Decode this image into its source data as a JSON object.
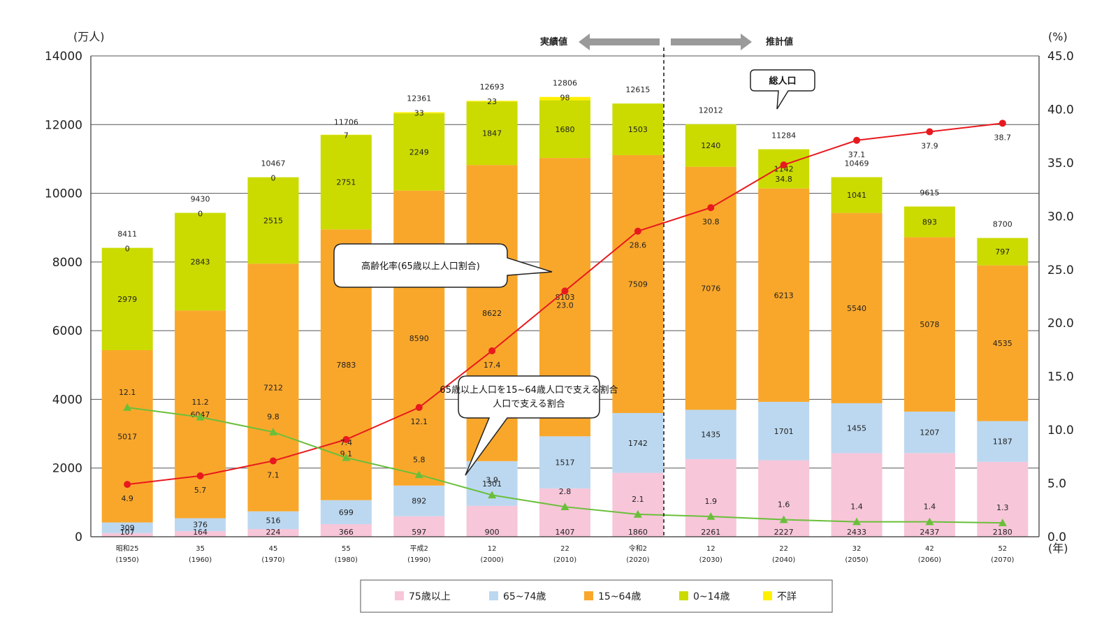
{
  "chart_data": {
    "type": "bar",
    "stacked": true,
    "units": {
      "left": "(万人)",
      "right": "(%)",
      "x": "(年)"
    },
    "ylim_left": [
      0,
      14000
    ],
    "yticks_left": [
      0,
      2000,
      4000,
      6000,
      8000,
      10000,
      12000,
      14000
    ],
    "ylim_right": [
      0,
      45
    ],
    "yticks_right": [
      "0.0",
      "5.0",
      "10.0",
      "15.0",
      "20.0",
      "25.0",
      "30.0",
      "35.0",
      "40.0",
      "45.0"
    ],
    "categories": [
      {
        "era": "昭和25",
        "year": "(1950)"
      },
      {
        "era": "35",
        "year": "(1960)"
      },
      {
        "era": "45",
        "year": "(1970)"
      },
      {
        "era": "55",
        "year": "(1980)"
      },
      {
        "era": "平成2",
        "year": "(1990)"
      },
      {
        "era": "12",
        "year": "(2000)"
      },
      {
        "era": "22",
        "year": "(2010)"
      },
      {
        "era": "令和2",
        "year": "(2020)"
      },
      {
        "era": "12",
        "year": "(2030)"
      },
      {
        "era": "22",
        "year": "(2040)"
      },
      {
        "era": "32",
        "year": "(2050)"
      },
      {
        "era": "42",
        "year": "(2060)"
      },
      {
        "era": "52",
        "year": "(2070)"
      }
    ],
    "series": [
      {
        "name": "75歳以上",
        "color": "#f7c6d9",
        "values": [
          107,
          164,
          224,
          366,
          597,
          900,
          1407,
          1860,
          2261,
          2227,
          2433,
          2437,
          2180
        ]
      },
      {
        "name": "65~74歳",
        "color": "#bcd8f0",
        "values": [
          309,
          376,
          516,
          699,
          892,
          1301,
          1517,
          1742,
          1435,
          1701,
          1455,
          1207,
          1187
        ]
      },
      {
        "name": "15~64歳",
        "color": "#f9a72b",
        "values": [
          5017,
          6047,
          7212,
          7883,
          8590,
          8622,
          8103,
          7509,
          7076,
          6213,
          5540,
          5078,
          4535
        ]
      },
      {
        "name": "0~14歳",
        "color": "#cbdb00",
        "values": [
          2979,
          2843,
          2515,
          2751,
          2249,
          1847,
          1680,
          1503,
          1240,
          1142,
          1041,
          893,
          797
        ]
      },
      {
        "name": "不詳",
        "color": "#fff000",
        "values": [
          0,
          0,
          0,
          7,
          33,
          23,
          98,
          0,
          0,
          0,
          0,
          0,
          0
        ]
      }
    ],
    "unknown_labels": [
      "0",
      "0",
      "0",
      "7",
      "33",
      "23",
      "98",
      "",
      "",
      "",
      "",
      "",
      ""
    ],
    "totals": [
      8411,
      9430,
      10467,
      11706,
      12361,
      12693,
      12806,
      12615,
      12012,
      11284,
      10469,
      9615,
      8700
    ],
    "lines": [
      {
        "name": "高齢化率(65歳以上人口割合)",
        "color": "#e8191e",
        "marker": "circle",
        "values": [
          4.9,
          5.7,
          7.1,
          9.1,
          12.1,
          17.4,
          23.0,
          28.6,
          30.8,
          34.8,
          37.1,
          37.9,
          38.7
        ],
        "labels": [
          "4.9",
          "5.7",
          "7.1",
          "9.1",
          "12.1",
          "17.4",
          "23.0",
          "28.6",
          "30.8",
          "34.8",
          "37.1",
          "37.9",
          "38.7"
        ]
      },
      {
        "name": "65歳以上人口を15~64歳人口で支える割合",
        "color": "#6abf3a",
        "marker": "triangle",
        "values": [
          12.1,
          11.2,
          9.8,
          7.4,
          5.8,
          3.9,
          2.8,
          2.1,
          1.9,
          1.6,
          1.4,
          1.4,
          1.3
        ],
        "labels": [
          "12.1",
          "11.2",
          "9.8",
          "7.4",
          "5.8",
          "3.9",
          "2.8",
          "2.1",
          "1.9",
          "1.6",
          "1.4",
          "1.4",
          "1.3"
        ]
      }
    ],
    "annotations": {
      "actual": "実績値",
      "projected": "推計値",
      "total_population": "総人口",
      "aging_rate": "高齢化率(65歳以上人口割合)",
      "support_ratio_line1": "65歳以上人口を15~64歳人口で支える割合",
      "support_ratio_line2": "人口で支える割合"
    },
    "legend_position": "bottom"
  }
}
